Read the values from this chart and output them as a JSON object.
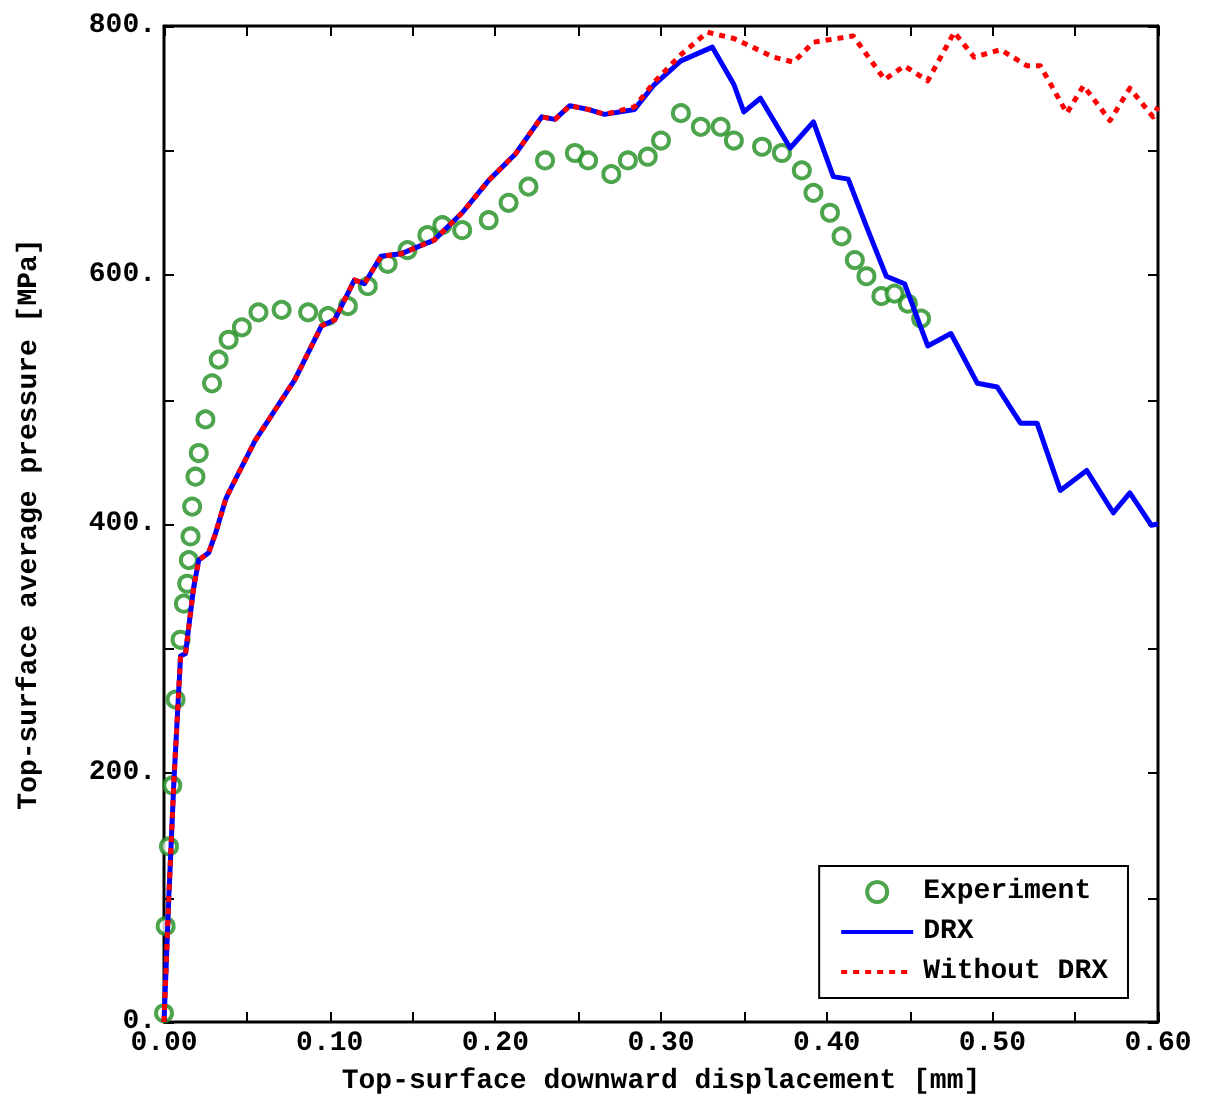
{
  "chart_data": {
    "type": "line",
    "xlabel": "Top-surface downward displacement [mm]",
    "ylabel": "Top-surface average pressure [MPa]",
    "xlim": [
      0,
      0.6
    ],
    "xticks": [
      {
        "value": 0,
        "label": "0.00"
      },
      {
        "value": 0.05,
        "label": null
      },
      {
        "value": 0.1,
        "label": "0.10"
      },
      {
        "value": 0.15,
        "label": null
      },
      {
        "value": 0.2,
        "label": "0.20"
      },
      {
        "value": 0.25,
        "label": null
      },
      {
        "value": 0.3,
        "label": "0.30"
      },
      {
        "value": 0.35,
        "label": null
      },
      {
        "value": 0.4,
        "label": "0.40"
      },
      {
        "value": 0.45,
        "label": null
      },
      {
        "value": 0.5,
        "label": "0.50"
      },
      {
        "value": 0.55,
        "label": null
      },
      {
        "value": 0.6,
        "label": "0.60"
      }
    ],
    "ylim": [
      0,
      800
    ],
    "yticks": [
      {
        "value": 0,
        "label": "0."
      },
      {
        "value": 100,
        "label": null
      },
      {
        "value": 200,
        "label": "200."
      },
      {
        "value": 300,
        "label": null
      },
      {
        "value": 400,
        "label": "400."
      },
      {
        "value": 500,
        "label": null
      },
      {
        "value": 600,
        "label": "600."
      },
      {
        "value": 700,
        "label": null
      },
      {
        "value": 800,
        "label": "800."
      }
    ],
    "legend": "bottom right",
    "series": [
      {
        "name": "Experiment",
        "type": "scatter",
        "marker": "circle",
        "color": "#1f8f1f",
        "x": [
          0,
          0.001,
          0.003,
          0.005,
          0.007,
          0.01,
          0.012,
          0.014,
          0.015,
          0.016,
          0.017,
          0.019,
          0.021,
          0.025,
          0.029,
          0.033,
          0.039,
          0.047,
          0.057,
          0.071,
          0.087,
          0.099,
          0.111,
          0.123,
          0.135,
          0.147,
          0.159,
          0.168,
          0.18,
          0.196,
          0.208,
          0.22,
          0.23,
          0.248,
          0.256,
          0.27,
          0.28,
          0.292,
          0.3,
          0.312,
          0.324,
          0.336,
          0.344,
          0.361,
          0.373,
          0.385,
          0.392,
          0.402,
          0.409,
          0.417,
          0.424,
          0.433,
          0.441,
          0.449,
          0.457
        ],
        "values": [
          7,
          77,
          141,
          190,
          259,
          307,
          336,
          352,
          371,
          390,
          414,
          438,
          457,
          484,
          513,
          532,
          548,
          558,
          570,
          572,
          570,
          567,
          575,
          591,
          609,
          620,
          632,
          640,
          636,
          644,
          658,
          671,
          692,
          698,
          692,
          681,
          692,
          695,
          708,
          730,
          719,
          719,
          708,
          703,
          698,
          684,
          666,
          650,
          631,
          612,
          599,
          583,
          585,
          577,
          565
        ]
      },
      {
        "name": "DRX",
        "marker": "none",
        "line_style": "solid",
        "color": "#0000ff",
        "x": [
          0,
          0.003,
          0.006,
          0.01,
          0.013,
          0.015,
          0.018,
          0.021,
          0.027,
          0.031,
          0.037,
          0.039,
          0.055,
          0.079,
          0.095,
          0.103,
          0.115,
          0.121,
          0.131,
          0.143,
          0.163,
          0.18,
          0.196,
          0.212,
          0.228,
          0.236,
          0.245,
          0.256,
          0.266,
          0.284,
          0.296,
          0.312,
          0.331,
          0.344,
          0.35,
          0.36,
          0.378,
          0.392,
          0.404,
          0.413,
          0.424,
          0.436,
          0.447,
          0.461,
          0.475,
          0.491,
          0.503,
          0.517,
          0.527,
          0.541,
          0.557,
          0.573,
          0.583,
          0.596,
          0.6
        ],
        "values": [
          0,
          103,
          194,
          294,
          296,
          318,
          350,
          371,
          377,
          392,
          419,
          425,
          467,
          516,
          559,
          564,
          596,
          593,
          615,
          617,
          628,
          650,
          676,
          697,
          727,
          725,
          736,
          733,
          729,
          733,
          753,
          772,
          783,
          753,
          731,
          742,
          702,
          723,
          679,
          677,
          639,
          599,
          593,
          543,
          553,
          513,
          510,
          481,
          481,
          427,
          443,
          409,
          425,
          399,
          400
        ]
      },
      {
        "name": "Without DRX",
        "marker": "none",
        "line_style": "dotted",
        "color": "#ff0000",
        "x": [
          0,
          0.003,
          0.006,
          0.01,
          0.013,
          0.015,
          0.018,
          0.021,
          0.027,
          0.031,
          0.037,
          0.039,
          0.055,
          0.079,
          0.095,
          0.103,
          0.115,
          0.121,
          0.131,
          0.143,
          0.163,
          0.18,
          0.196,
          0.212,
          0.228,
          0.236,
          0.245,
          0.256,
          0.266,
          0.284,
          0.296,
          0.312,
          0.328,
          0.344,
          0.368,
          0.38,
          0.392,
          0.416,
          0.435,
          0.447,
          0.461,
          0.477,
          0.489,
          0.505,
          0.521,
          0.529,
          0.545,
          0.555,
          0.571,
          0.583,
          0.597,
          0.6
        ],
        "values": [
          0,
          103,
          194,
          294,
          296,
          318,
          350,
          371,
          377,
          392,
          419,
          425,
          467,
          516,
          559,
          564,
          596,
          593,
          615,
          617,
          628,
          650,
          676,
          697,
          727,
          725,
          736,
          733,
          729,
          735,
          755,
          777,
          795,
          790,
          775,
          771,
          787,
          792,
          757,
          768,
          756,
          795,
          775,
          781,
          768,
          768,
          730,
          752,
          724,
          750,
          727,
          735
        ]
      }
    ]
  }
}
